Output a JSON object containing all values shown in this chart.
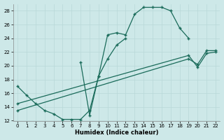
{
  "xlabel": "Humidex (Indice chaleur)",
  "bg_color": "#cde8e8",
  "grid_color": "#b8d8d8",
  "line_color": "#1a6b5a",
  "xlim": [
    -0.5,
    22.5
  ],
  "ylim": [
    12,
    29
  ],
  "xticks": [
    0,
    1,
    2,
    3,
    4,
    5,
    6,
    7,
    8,
    9,
    10,
    11,
    12,
    13,
    14,
    15,
    16,
    17,
    18,
    19,
    20,
    21,
    22
  ],
  "yticks": [
    12,
    14,
    16,
    18,
    20,
    22,
    24,
    26,
    28
  ],
  "curve1_x": [
    0,
    1,
    2,
    3,
    4,
    5,
    6,
    7,
    8,
    9,
    10,
    11,
    12,
    13,
    14,
    15,
    16,
    17,
    18,
    19
  ],
  "curve1_y": [
    17,
    15.7,
    14.5,
    13.5,
    13,
    12.2,
    12.2,
    12.2,
    13.5,
    18.5,
    24.5,
    24.8,
    24.5,
    27.5,
    28.5,
    28.5,
    28.5,
    28.0,
    25.5,
    24.0
  ],
  "curve2_x": [
    7,
    8,
    9,
    10,
    11,
    12
  ],
  "curve2_y": [
    20.5,
    12.8,
    18.5,
    21.0,
    23.0,
    24.0
  ],
  "diag1_x": [
    0,
    19,
    20,
    21,
    22
  ],
  "diag1_y": [
    14.5,
    21.5,
    19.8,
    21.8,
    22.0
  ],
  "diag2_x": [
    0,
    19,
    20,
    21,
    22
  ],
  "diag2_y": [
    13.5,
    21.0,
    20.2,
    22.2,
    22.2
  ]
}
